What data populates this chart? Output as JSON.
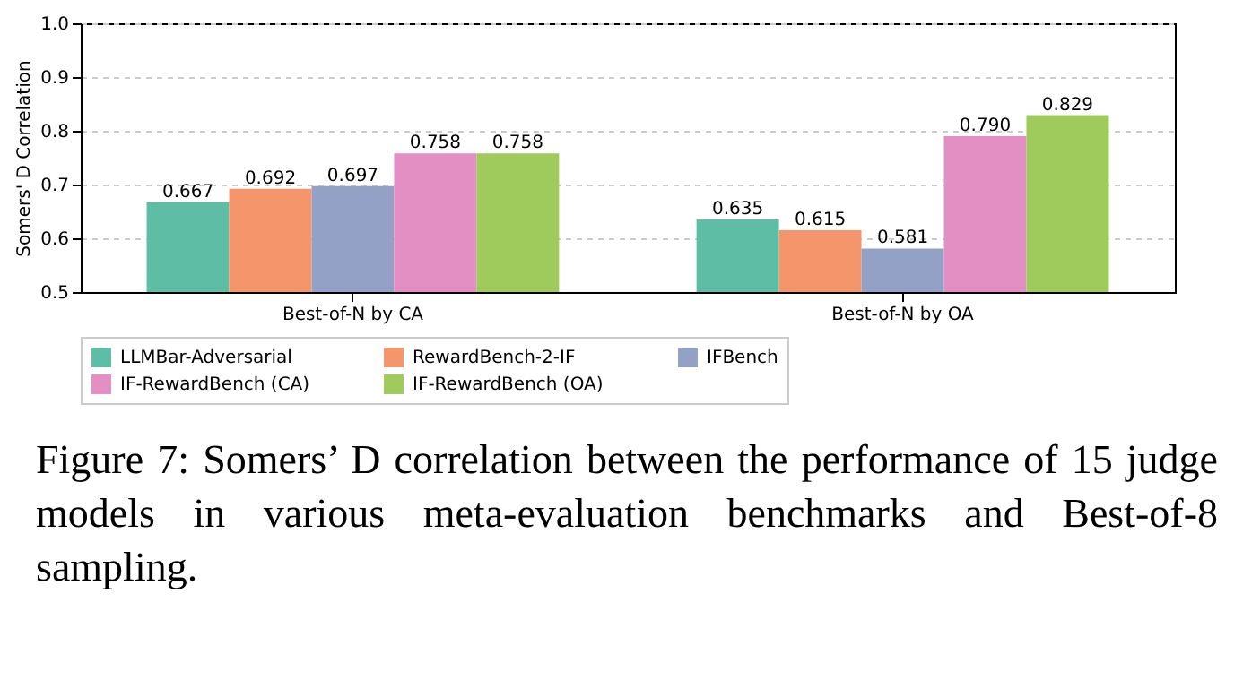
{
  "chart_data": {
    "type": "bar",
    "ylabel": "Somers' D Correlation",
    "categories": [
      "Best-of-N by CA",
      "Best-of-N by OA"
    ],
    "series": [
      {
        "name": "LLMBar-Adversarial",
        "color": "#5dbea5",
        "values": [
          0.667,
          0.635
        ],
        "value_labels": [
          "0.667",
          "0.635"
        ]
      },
      {
        "name": "RewardBench-2-IF",
        "color": "#f4956c",
        "values": [
          0.692,
          0.615
        ],
        "value_labels": [
          "0.692",
          "0.615"
        ]
      },
      {
        "name": "IFBench",
        "color": "#93a1c7",
        "values": [
          0.697,
          0.581
        ],
        "value_labels": [
          "0.697",
          "0.581"
        ]
      },
      {
        "name": "IF-RewardBench (CA)",
        "color": "#e48fc3",
        "values": [
          0.758,
          0.79
        ],
        "value_labels": [
          "0.758",
          "0.790"
        ]
      },
      {
        "name": "IF-RewardBench (OA)",
        "color": "#9ecb5b",
        "values": [
          0.758,
          0.829
        ],
        "value_labels": [
          "0.758",
          "0.829"
        ]
      }
    ],
    "ylim": [
      0.5,
      1.0
    ],
    "yticks": [
      0.5,
      0.6,
      0.7,
      0.8,
      0.9,
      {
        "value": 1.0,
        "label": "1.0"
      }
    ],
    "grid": "y",
    "legend": "bottom",
    "annotations": [
      "Figure 7: Somers’ D correlation between the performance of 15 judge models in various meta-evaluation benchmarks and Best-of-8 sampling."
    ]
  }
}
